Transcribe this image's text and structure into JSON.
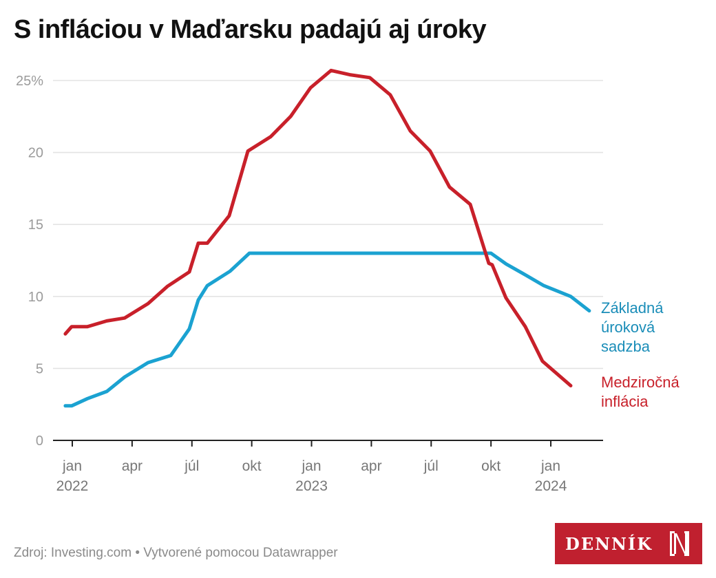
{
  "title": "S infláciou v Maďarsku padajú aj úroky",
  "footer": {
    "source": "Zdroj: Investing.com • Vytvorené pomocou Datawrapper",
    "logo_text": "DENNÍK N"
  },
  "colors": {
    "inflation": "#c8202a",
    "rate": "#1ba2d1",
    "rate_label": "#1a8db8",
    "grid": "#e3e3e3",
    "axis": "#222222",
    "logo_bg": "#c0202f"
  },
  "chart_data": {
    "type": "line",
    "title": "S infláciou v Maďarsku padajú aj úroky",
    "xlabel": "",
    "ylabel": "",
    "ylim": [
      0,
      25
    ],
    "y_ticks": [
      {
        "value": 0,
        "label": "0"
      },
      {
        "value": 5,
        "label": "5"
      },
      {
        "value": 10,
        "label": "10"
      },
      {
        "value": 15,
        "label": "15"
      },
      {
        "value": 20,
        "label": "20"
      },
      {
        "value": 25,
        "label": "25%"
      }
    ],
    "x_unit": "months since jan 2022",
    "xlim": [
      -0.4,
      26.2
    ],
    "x_ticks": [
      {
        "value": 0,
        "label": "jan",
        "sublabel": "2022"
      },
      {
        "value": 3,
        "label": "apr",
        "sublabel": ""
      },
      {
        "value": 6,
        "label": "júl",
        "sublabel": ""
      },
      {
        "value": 9,
        "label": "okt",
        "sublabel": ""
      },
      {
        "value": 12,
        "label": "jan",
        "sublabel": "2023"
      },
      {
        "value": 15,
        "label": "apr",
        "sublabel": ""
      },
      {
        "value": 18,
        "label": "júl",
        "sublabel": ""
      },
      {
        "value": 21,
        "label": "okt",
        "sublabel": ""
      },
      {
        "value": 24,
        "label": "jan",
        "sublabel": "2024"
      }
    ],
    "grid": true,
    "legend": "direct labels at right end of lines",
    "series": [
      {
        "name": "Základná úroková sadzba",
        "label_lines": [
          "Základná",
          "úroková",
          "sadzba"
        ],
        "color_key": "rate",
        "points": [
          [
            -0.35,
            2.4
          ],
          [
            -0.03,
            2.4
          ],
          [
            0.76,
            2.9
          ],
          [
            1.73,
            3.4
          ],
          [
            2.62,
            4.4
          ],
          [
            3.8,
            5.4
          ],
          [
            4.94,
            5.9
          ],
          [
            5.87,
            7.75
          ],
          [
            6.32,
            9.75
          ],
          [
            6.77,
            10.75
          ],
          [
            7.91,
            11.75
          ],
          [
            8.88,
            13.0
          ],
          [
            21.0,
            13.0
          ],
          [
            21.76,
            12.25
          ],
          [
            22.72,
            11.5
          ],
          [
            23.65,
            10.75
          ],
          [
            25.0,
            10.0
          ],
          [
            25.93,
            9.0
          ]
        ]
      },
      {
        "name": "Medziročná inflácia",
        "label_lines": [
          "Medziročná",
          "inflácia"
        ],
        "color_key": "inflation",
        "points": [
          [
            -0.35,
            7.4
          ],
          [
            -0.03,
            7.9
          ],
          [
            0.76,
            7.9
          ],
          [
            1.73,
            8.3
          ],
          [
            2.62,
            8.5
          ],
          [
            3.8,
            9.5
          ],
          [
            4.77,
            10.7
          ],
          [
            5.87,
            11.7
          ],
          [
            6.32,
            13.7
          ],
          [
            6.77,
            13.7
          ],
          [
            7.87,
            15.6
          ],
          [
            8.81,
            20.1
          ],
          [
            9.95,
            21.1
          ],
          [
            10.95,
            22.5
          ],
          [
            11.95,
            24.5
          ],
          [
            12.98,
            25.7
          ],
          [
            13.92,
            25.4
          ],
          [
            14.92,
            25.2
          ],
          [
            15.95,
            24.0
          ],
          [
            16.95,
            21.5
          ],
          [
            17.95,
            20.1
          ],
          [
            18.92,
            17.6
          ],
          [
            19.96,
            16.4
          ],
          [
            20.89,
            12.3
          ],
          [
            21.06,
            12.2
          ],
          [
            21.75,
            9.9
          ],
          [
            22.72,
            7.9
          ],
          [
            23.58,
            5.5
          ],
          [
            25.0,
            3.8
          ]
        ]
      }
    ]
  }
}
